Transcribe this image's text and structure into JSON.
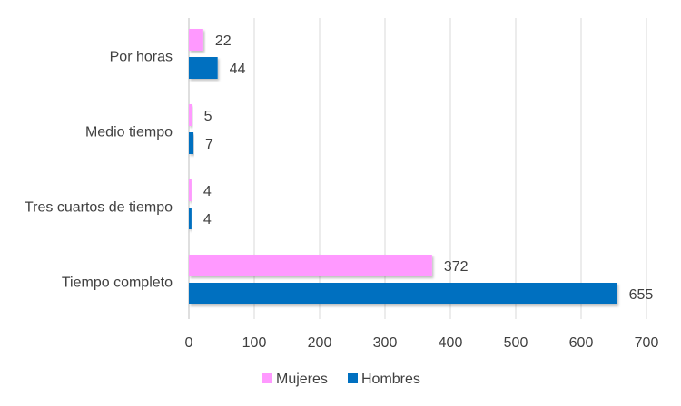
{
  "chart_data": {
    "type": "bar",
    "orientation": "horizontal",
    "title": "",
    "xlabel": "",
    "ylabel": "",
    "categories": [
      "Por horas",
      "Medio tiempo",
      "Tres cuartos de tiempo",
      "Tiempo completo"
    ],
    "series": [
      {
        "name": "Mujeres",
        "color": "#ff99ff",
        "values": [
          22,
          5,
          4,
          372
        ]
      },
      {
        "name": "Hombres",
        "color": "#0070c0",
        "values": [
          44,
          7,
          4,
          655
        ]
      }
    ],
    "xlim": [
      0,
      700
    ],
    "xticks": [
      0,
      100,
      200,
      300,
      400,
      500,
      600,
      700
    ],
    "grid": "vertical",
    "legend_position": "bottom"
  }
}
